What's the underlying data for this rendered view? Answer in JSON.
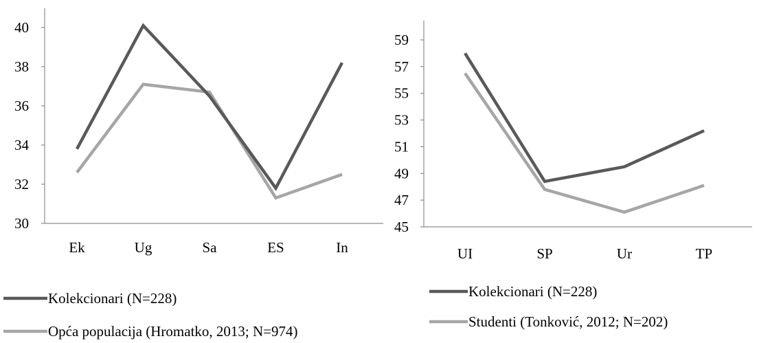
{
  "chart_data": [
    {
      "type": "line",
      "categories": [
        "Ek",
        "Ug",
        "Sa",
        "ES",
        "In"
      ],
      "ylim": [
        30,
        40
      ],
      "yticks": [
        30,
        32,
        34,
        36,
        38,
        40
      ],
      "series": [
        {
          "name": "Kolekcionari (N=228)",
          "color": "#595959",
          "values": [
            33.8,
            40.1,
            36.5,
            31.8,
            38.2
          ]
        },
        {
          "name": "Opća populacija (Hromatko, 2013; N=974)",
          "color": "#a6a6a6",
          "values": [
            32.6,
            37.1,
            36.7,
            31.3,
            32.5
          ]
        }
      ],
      "title": "",
      "xlabel": "",
      "ylabel": "",
      "legend_position": "bottom",
      "grid": false
    },
    {
      "type": "line",
      "categories": [
        "UI",
        "SP",
        "Ur",
        "TP"
      ],
      "ylim": [
        45,
        59
      ],
      "yticks": [
        45,
        47,
        49,
        51,
        53,
        55,
        57,
        59
      ],
      "series": [
        {
          "name": "Kolekcionari (N=228)",
          "color": "#595959",
          "values": [
            58.0,
            48.4,
            49.5,
            52.2
          ]
        },
        {
          "name": "Studenti (Tonković, 2012; N=202)",
          "color": "#a6a6a6",
          "values": [
            56.5,
            47.8,
            46.1,
            48.1
          ]
        }
      ],
      "title": "",
      "xlabel": "",
      "ylabel": "",
      "legend_position": "bottom",
      "grid": false
    }
  ]
}
